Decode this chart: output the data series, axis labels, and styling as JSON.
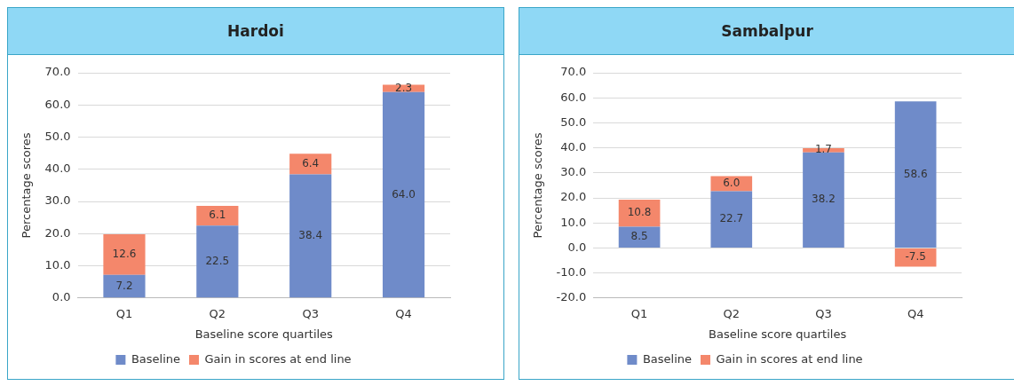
{
  "chart_data": [
    {
      "type": "bar",
      "title": "Hardoi",
      "xlabel": "Baseline score quartiles",
      "ylabel": "Percentage scores",
      "categories": [
        "Q1",
        "Q2",
        "Q3",
        "Q4"
      ],
      "stacked": true,
      "series": [
        {
          "name": "Baseline",
          "color": "#6f8bc9",
          "values": [
            7.2,
            22.5,
            38.4,
            64.0
          ],
          "value_labels": [
            "7.2",
            "22.5",
            "38.4",
            "64.0"
          ]
        },
        {
          "name": "Gain in scores at end line",
          "color": "#f4876b",
          "values": [
            12.6,
            6.1,
            6.4,
            2.3
          ],
          "value_labels": [
            "12.6",
            "6.1",
            "6.4",
            "2.3"
          ]
        }
      ],
      "ylim": [
        0,
        70
      ],
      "yticks": [
        {
          "value": 0,
          "label": "0.0"
        },
        {
          "value": 10,
          "label": "10.0"
        },
        {
          "value": 20,
          "label": "20.0"
        },
        {
          "value": 30,
          "label": "30.0"
        },
        {
          "value": 40,
          "label": "40.0"
        },
        {
          "value": 50,
          "label": "50.0"
        },
        {
          "value": 60,
          "label": "60.0"
        },
        {
          "value": 70,
          "label": "70.0"
        }
      ],
      "grid": "y",
      "legend": "bottom"
    },
    {
      "type": "bar",
      "title": "Sambalpur",
      "xlabel": "Baseline score quartiles",
      "ylabel": "Percentage scores",
      "categories": [
        "Q1",
        "Q2",
        "Q3",
        "Q4"
      ],
      "stacked": true,
      "series": [
        {
          "name": "Baseline",
          "color": "#6f8bc9",
          "values": [
            8.5,
            22.7,
            38.2,
            58.6
          ],
          "value_labels": [
            "8.5",
            "22.7",
            "38.2",
            "58.6"
          ]
        },
        {
          "name": "Gain in scores at end line",
          "color": "#f4876b",
          "values": [
            10.8,
            6.0,
            1.7,
            -7.5
          ],
          "value_labels": [
            "10.8",
            "6.0",
            "1.7",
            "-7.5"
          ]
        }
      ],
      "ylim": [
        -20,
        70
      ],
      "yticks": [
        {
          "value": -20,
          "label": "-20.0"
        },
        {
          "value": -10,
          "label": "-10.0"
        },
        {
          "value": 0,
          "label": "0.0"
        },
        {
          "value": 10,
          "label": "10.0"
        },
        {
          "value": 20,
          "label": "20.0"
        },
        {
          "value": 30,
          "label": "30.0"
        },
        {
          "value": 40,
          "label": "40.0"
        },
        {
          "value": 50,
          "label": "50.0"
        },
        {
          "value": 60,
          "label": "60.0"
        },
        {
          "value": 70,
          "label": "70.0"
        }
      ],
      "grid": "y",
      "legend": "bottom"
    }
  ]
}
